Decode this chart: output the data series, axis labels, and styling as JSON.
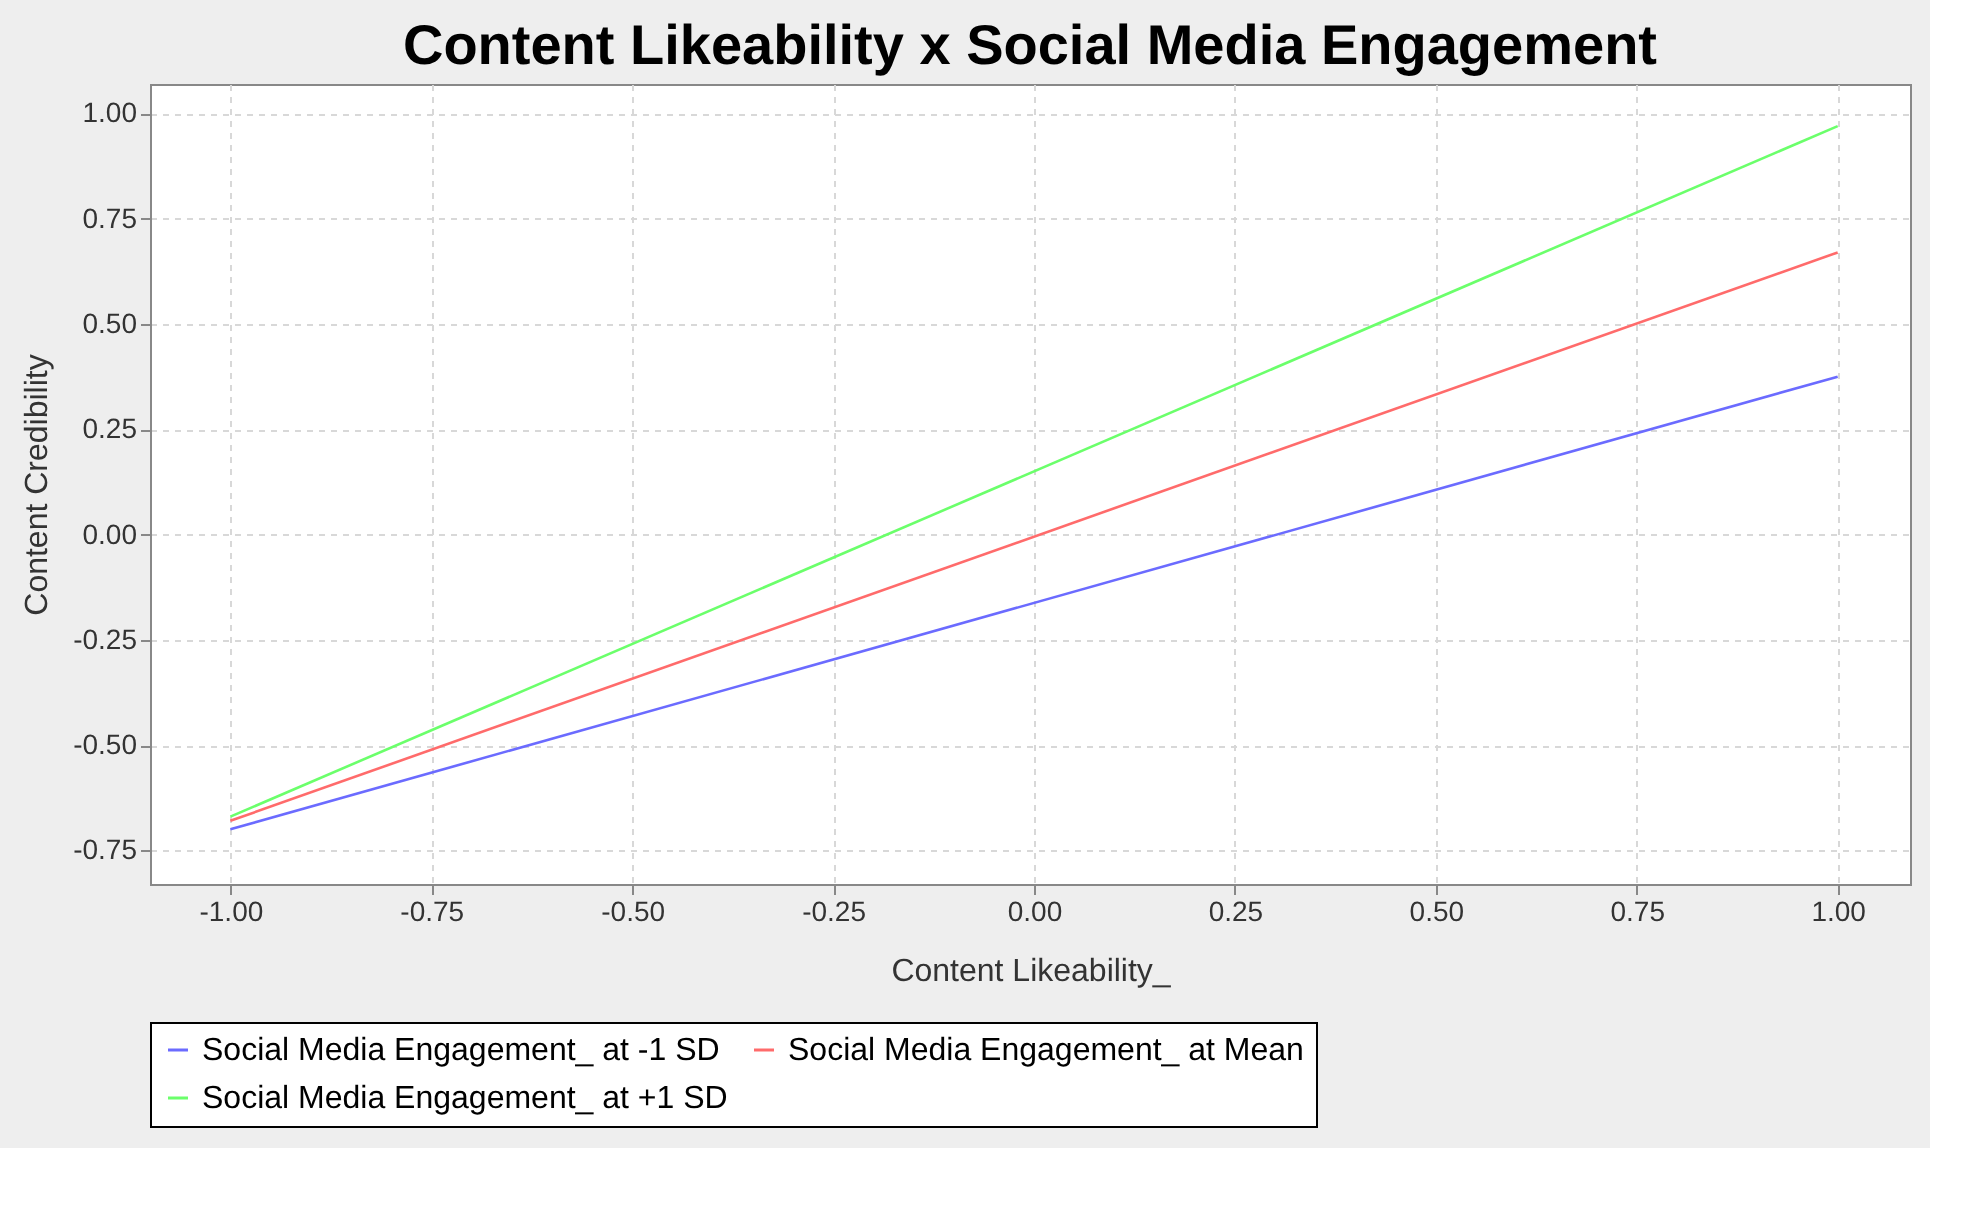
{
  "chart_data": {
    "type": "line",
    "title": "Content Likeability x Social Media Engagement",
    "xlabel": "Content Likeability_",
    "ylabel": "Content Credibility",
    "x": [
      -1,
      1
    ],
    "series": [
      {
        "name": "Social Media Engagement_ at -1 SD",
        "color": "#6b6bff",
        "values": [
          -0.7,
          0.375
        ]
      },
      {
        "name": "Social Media Engagement_ at Mean",
        "color": "#ff6b6b",
        "values": [
          -0.68,
          0.67
        ]
      },
      {
        "name": "Social Media Engagement_ at +1 SD",
        "color": "#6bff6b",
        "values": [
          -0.67,
          0.97
        ]
      }
    ],
    "xlim": [
      -1.1,
      1.09
    ],
    "ylim": [
      -0.83,
      1.07
    ],
    "xticks": [
      {
        "value": -1,
        "label": "-1.00"
      },
      {
        "value": -0.75,
        "label": "-0.75"
      },
      {
        "value": -0.5,
        "label": "-0.50"
      },
      {
        "value": -0.25,
        "label": "-0.25"
      },
      {
        "value": 0,
        "label": "0.00"
      },
      {
        "value": 0.25,
        "label": "0.25"
      },
      {
        "value": 0.5,
        "label": "0.50"
      },
      {
        "value": 0.75,
        "label": "0.75"
      },
      {
        "value": 1,
        "label": "1.00"
      }
    ],
    "yticks": [
      {
        "value": -0.75,
        "label": "-0.75"
      },
      {
        "value": -0.5,
        "label": "-0.50"
      },
      {
        "value": -0.25,
        "label": "-0.25"
      },
      {
        "value": 0,
        "label": "0.00"
      },
      {
        "value": 0.25,
        "label": "0.25"
      },
      {
        "value": 0.5,
        "label": "0.50"
      },
      {
        "value": 0.75,
        "label": "0.75"
      },
      {
        "value": 1,
        "label": "1.00"
      }
    ],
    "grid": true,
    "legend": "bottom",
    "marker": "none",
    "line_style": "solid"
  }
}
